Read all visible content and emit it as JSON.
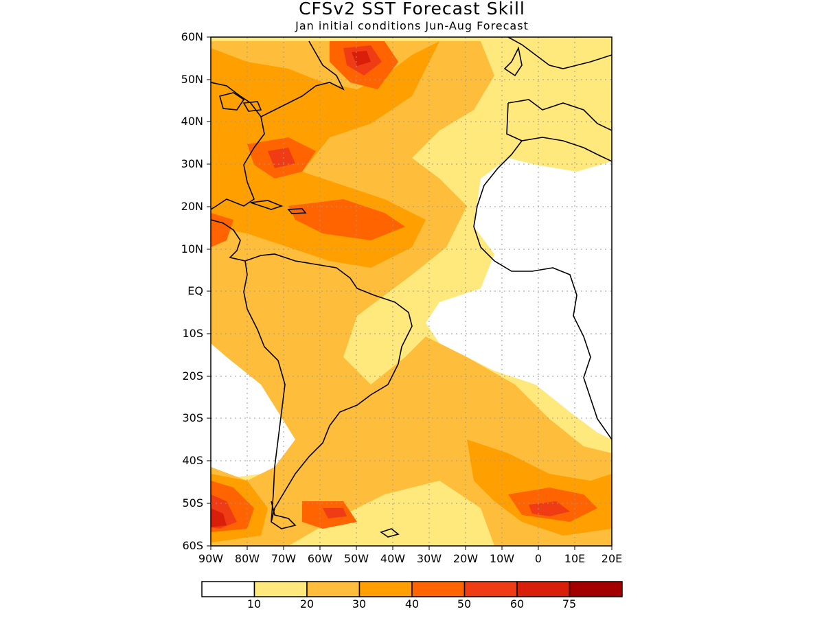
{
  "title": "CFSv2 SST Forecast Skill",
  "subtitle": "Jan initial conditions  Jun-Aug Forecast",
  "lat_labels": [
    "60N",
    "50N",
    "40N",
    "30N",
    "20N",
    "10N",
    "EQ",
    "10S",
    "20S",
    "30S",
    "40S",
    "50S",
    "60S"
  ],
  "lon_labels": [
    "90W",
    "80W",
    "70W",
    "60W",
    "50W",
    "40W",
    "30W",
    "20W",
    "10W",
    "0",
    "10E",
    "20E"
  ],
  "map_extent": {
    "lon": [
      -90,
      20
    ],
    "lat": [
      -60,
      60
    ]
  },
  "grid": "dotted gray",
  "legend": {
    "colors": [
      "#ffffff",
      "#ffe87c",
      "#ffbd3c",
      "#ffa000",
      "#ff6400",
      "#f03c14",
      "#d91e0a",
      "#a50000"
    ],
    "labels": [
      "10",
      "20",
      "30",
      "40",
      "50",
      "60",
      "75"
    ]
  }
}
